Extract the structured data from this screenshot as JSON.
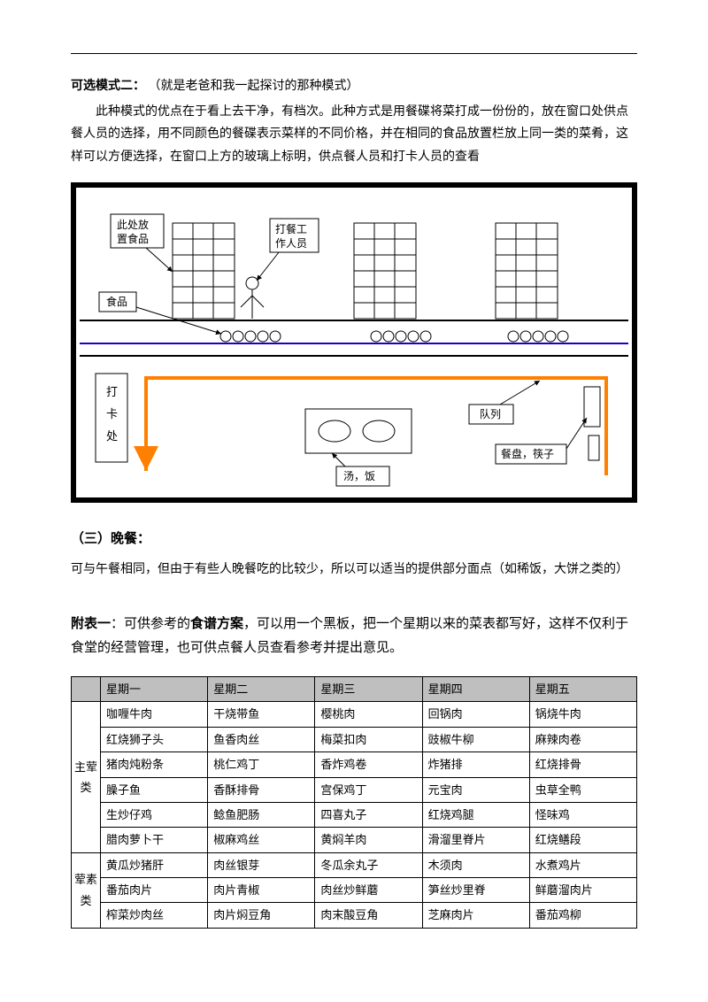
{
  "intro": {
    "heading": "可选模式二：",
    "heading_note": "（就是老爸和我一起探讨的那种模式）",
    "body": "此种模式的优点在于看上去干净，有档次。此种方式是用餐碟将菜打成一份份的，放在窗口处供点餐人员的选择，用不同颜色的餐碟表示菜样的不同价格，并在相同的食品放置栏放上同一类的菜肴，这样可以方便选择，在窗口上方的玻璃上标明，供点餐人员和打卡人员的查看"
  },
  "diagram": {
    "labels": {
      "food_shelf": "此处放\n置食品",
      "worker": "打餐工\n作人员",
      "food": "食品",
      "checkout": "打\n卡\n处",
      "soup_rice": "汤，饭",
      "queue": "队列",
      "utensils": "餐盘，筷子"
    },
    "colors": {
      "frame": "#000000",
      "blue_line": "#1c00c8",
      "orange_path": "#ff7f00",
      "box_border": "#000000"
    }
  },
  "dinner": {
    "title": "（三）晚餐：",
    "body": "可与午餐相同，但由于有些人晚餐吃的比较少，所以可以适当的提供部分面点（如稀饭，大饼之类的）"
  },
  "appendix": {
    "title_bold1": "附表一",
    "title_mid": "：可供参考的",
    "title_bold2": "食谱方案",
    "title_rest": "，可以用一个黑板，把一个星期以来的菜表都写好，这样不仅利于食堂的经营管理，也可供点餐人员查看参考并提出意见。"
  },
  "table": {
    "headers": [
      "",
      "星期一",
      "星期二",
      "星期三",
      "星期四",
      "星期五"
    ],
    "cat1": "主荤\n类",
    "cat2": "荤素\n类",
    "rows1": [
      [
        "咖喱牛肉",
        "干烧带鱼",
        "樱桃肉",
        "回锅肉",
        "锅烧牛肉"
      ],
      [
        "红烧狮子头",
        "鱼香肉丝",
        "梅菜扣肉",
        "豉椒牛柳",
        "麻辣肉卷"
      ],
      [
        "猪肉炖粉条",
        "桃仁鸡丁",
        "香炸鸡卷",
        "炸猪排",
        "红烧排骨"
      ],
      [
        "臊子鱼",
        "香酥排骨",
        "宫保鸡丁",
        "元宝肉",
        "虫草全鸭"
      ],
      [
        "生炒仔鸡",
        "鲶鱼肥肠",
        "四喜丸子",
        "红烧鸡腿",
        "怪味鸡"
      ],
      [
        "腊肉萝卜干",
        "椒麻鸡丝",
        "黄焖羊肉",
        "滑溜里脊片",
        "红烧鳝段"
      ]
    ],
    "rows2": [
      [
        "黄瓜炒猪肝",
        "肉丝银芽",
        "冬瓜余丸子",
        "木须肉",
        "水煮鸡片"
      ],
      [
        "番茄肉片",
        "肉片青椒",
        "肉丝炒鲜蘑",
        "笋丝炒里脊",
        "鲜蘑溜肉片"
      ],
      [
        "榨菜炒肉丝",
        "肉片焖豆角",
        "肉末酸豆角",
        "芝麻肉片",
        "番茄鸡柳"
      ]
    ]
  }
}
